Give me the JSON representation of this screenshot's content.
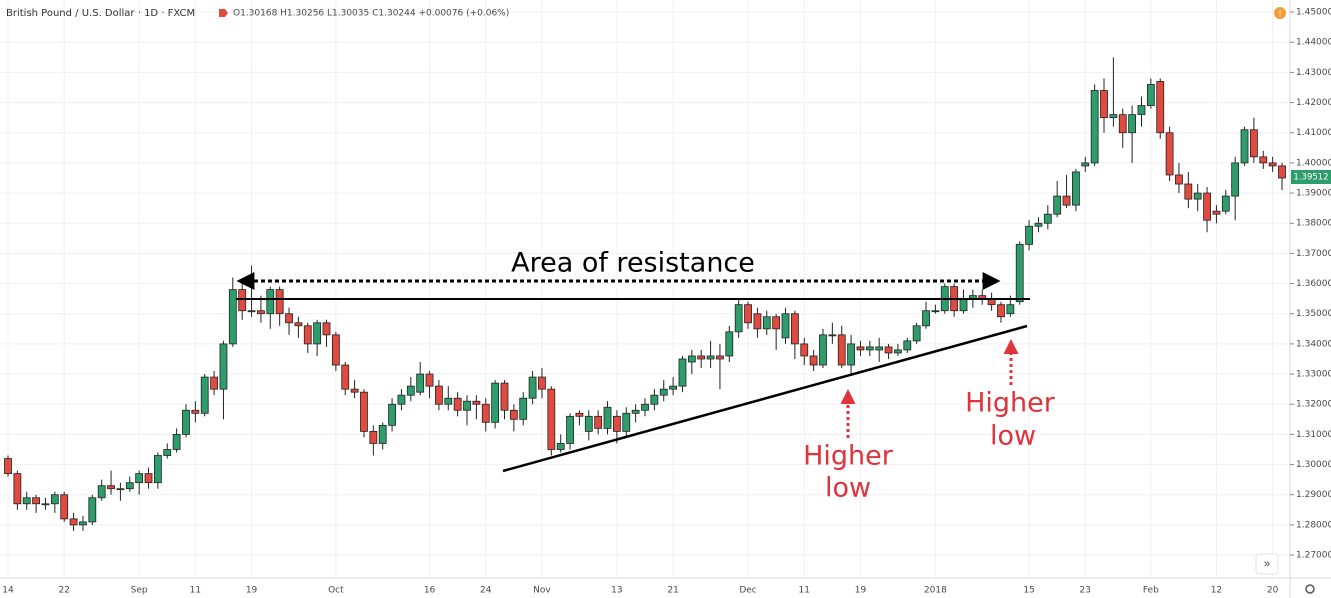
{
  "chart_data": {
    "type": "candlestick",
    "title": "British Pound / U.S. Dollar · 1D · FXCM",
    "legend_values": "O1.30168 H1.30256 L1.30035 C1.30244 +0.00076 (+0.06%)",
    "last_price_label": "1.39512",
    "up_color": "#2e9d6c",
    "down_color": "#e04a3f",
    "grid": true,
    "annotations": {
      "resistance": "Area of resistance",
      "higher_low_1": [
        "Higher",
        "low"
      ],
      "higher_low_2": [
        "Higher",
        "low"
      ]
    },
    "categories": [
      "14",
      null,
      null,
      null,
      null,
      null,
      "22",
      null,
      null,
      null,
      null,
      null,
      null,
      null,
      "Sep",
      null,
      null,
      null,
      null,
      null,
      "11",
      null,
      null,
      null,
      null,
      null,
      "19",
      null,
      null,
      null,
      null,
      null,
      null,
      null,
      null,
      "Oct",
      null,
      null,
      null,
      null,
      null,
      null,
      null,
      null,
      null,
      "16",
      null,
      null,
      null,
      null,
      null,
      "24",
      null,
      null,
      null,
      null,
      null,
      "Nov",
      null,
      null,
      null,
      null,
      null,
      null,
      null,
      "13",
      null,
      null,
      null,
      null,
      null,
      "21",
      null,
      null,
      null,
      null,
      null,
      null,
      null,
      "Dec",
      null,
      null,
      null,
      null,
      null,
      "11",
      null,
      null,
      null,
      null,
      null,
      "19",
      null,
      null,
      null,
      null,
      null,
      null,
      null,
      "2018",
      null,
      null,
      null,
      null,
      null,
      null,
      null,
      null,
      null,
      "15",
      null,
      null,
      null,
      null,
      null,
      "23",
      null,
      null,
      null,
      null,
      null,
      null,
      "Feb",
      null,
      null,
      null,
      null,
      null,
      null,
      "12",
      null,
      null,
      null,
      null,
      null,
      "20",
      null
    ],
    "open": [
      1.302,
      1.297,
      1.287,
      1.289,
      1.287,
      1.287,
      1.29,
      1.282,
      1.28,
      1.281,
      1.289,
      1.293,
      1.292,
      1.292,
      1.294,
      1.297,
      1.294,
      1.303,
      1.305,
      1.31,
      1.318,
      1.317,
      1.329,
      1.325,
      1.34,
      1.358,
      1.351,
      1.351,
      1.35,
      1.358,
      1.35,
      1.347,
      1.346,
      1.34,
      1.347,
      1.343,
      1.333,
      1.325,
      1.324,
      1.311,
      1.307,
      1.313,
      1.32,
      1.323,
      1.324,
      1.33,
      1.326,
      1.32,
      1.322,
      1.318,
      1.321,
      1.32,
      1.314,
      1.327,
      1.318,
      1.315,
      1.322,
      1.329,
      1.325,
      1.305,
      1.307,
      1.317,
      1.311,
      1.316,
      1.312,
      1.316,
      1.311,
      1.317,
      1.318,
      1.32,
      1.323,
      1.325,
      1.326,
      1.334,
      1.336,
      1.335,
      1.336,
      1.336,
      1.344,
      1.353,
      1.35,
      1.345,
      1.349,
      1.342,
      1.35,
      1.34,
      1.336,
      1.333,
      1.343,
      1.343,
      1.333,
      1.339,
      1.338,
      1.338,
      1.339,
      1.337,
      1.338,
      1.341,
      1.346,
      1.351,
      1.351,
      1.359,
      1.351,
      1.355,
      1.356,
      1.355,
      1.353,
      1.35,
      1.354,
      1.373,
      1.379,
      1.38,
      1.383,
      1.389,
      1.386,
      1.399,
      1.4,
      1.424,
      1.415,
      1.416,
      1.41,
      1.416,
      1.419,
      1.427,
      1.41,
      1.396,
      1.393,
      1.388,
      1.39,
      1.384,
      1.384,
      1.389,
      1.4,
      1.411,
      1.402,
      1.4,
      1.399
    ],
    "high": [
      1.303,
      1.298,
      1.291,
      1.29,
      1.289,
      1.291,
      1.291,
      1.284,
      1.283,
      1.29,
      1.295,
      1.298,
      1.294,
      1.296,
      1.298,
      1.299,
      1.304,
      1.307,
      1.312,
      1.32,
      1.321,
      1.33,
      1.331,
      1.341,
      1.362,
      1.36,
      1.366,
      1.356,
      1.359,
      1.359,
      1.352,
      1.349,
      1.347,
      1.348,
      1.348,
      1.344,
      1.334,
      1.328,
      1.325,
      1.313,
      1.314,
      1.322,
      1.325,
      1.329,
      1.334,
      1.331,
      1.328,
      1.326,
      1.324,
      1.323,
      1.323,
      1.322,
      1.328,
      1.328,
      1.32,
      1.324,
      1.331,
      1.332,
      1.326,
      1.31,
      1.317,
      1.318,
      1.318,
      1.318,
      1.321,
      1.318,
      1.319,
      1.32,
      1.322,
      1.325,
      1.328,
      1.329,
      1.336,
      1.338,
      1.338,
      1.341,
      1.34,
      1.346,
      1.355,
      1.354,
      1.352,
      1.351,
      1.35,
      1.352,
      1.351,
      1.342,
      1.338,
      1.345,
      1.347,
      1.346,
      1.343,
      1.341,
      1.341,
      1.342,
      1.34,
      1.34,
      1.342,
      1.347,
      1.354,
      1.353,
      1.36,
      1.36,
      1.358,
      1.358,
      1.358,
      1.357,
      1.354,
      1.356,
      1.374,
      1.381,
      1.382,
      1.386,
      1.394,
      1.396,
      1.398,
      1.402,
      1.426,
      1.428,
      1.435,
      1.418,
      1.419,
      1.422,
      1.428,
      1.428,
      1.412,
      1.4,
      1.397,
      1.393,
      1.392,
      1.386,
      1.391,
      1.402,
      1.412,
      1.415,
      1.404,
      1.402,
      1.4
    ],
    "low": [
      1.296,
      1.285,
      1.285,
      1.284,
      1.285,
      1.284,
      1.281,
      1.278,
      1.278,
      1.28,
      1.288,
      1.29,
      1.288,
      1.291,
      1.29,
      1.292,
      1.292,
      1.302,
      1.304,
      1.309,
      1.314,
      1.316,
      1.323,
      1.315,
      1.339,
      1.348,
      1.349,
      1.347,
      1.345,
      1.346,
      1.343,
      1.342,
      1.337,
      1.336,
      1.339,
      1.331,
      1.323,
      1.322,
      1.309,
      1.303,
      1.305,
      1.311,
      1.318,
      1.321,
      1.323,
      1.322,
      1.318,
      1.318,
      1.316,
      1.313,
      1.315,
      1.311,
      1.312,
      1.315,
      1.311,
      1.313,
      1.32,
      1.322,
      1.303,
      1.304,
      1.305,
      1.313,
      1.308,
      1.31,
      1.31,
      1.307,
      1.309,
      1.314,
      1.316,
      1.318,
      1.321,
      1.323,
      1.324,
      1.33,
      1.332,
      1.332,
      1.325,
      1.334,
      1.342,
      1.345,
      1.342,
      1.343,
      1.338,
      1.34,
      1.335,
      1.333,
      1.331,
      1.332,
      1.34,
      1.332,
      1.33,
      1.336,
      1.336,
      1.334,
      1.335,
      1.336,
      1.337,
      1.34,
      1.345,
      1.35,
      1.35,
      1.349,
      1.35,
      1.352,
      1.353,
      1.351,
      1.347,
      1.349,
      1.353,
      1.371,
      1.377,
      1.378,
      1.382,
      1.385,
      1.384,
      1.397,
      1.399,
      1.41,
      1.412,
      1.405,
      1.4,
      1.412,
      1.418,
      1.408,
      1.394,
      1.39,
      1.385,
      1.384,
      1.377,
      1.38,
      1.383,
      1.381,
      1.399,
      1.4,
      1.398,
      1.397,
      1.391
    ],
    "close": [
      1.297,
      1.287,
      1.289,
      1.287,
      1.287,
      1.29,
      1.282,
      1.28,
      1.281,
      1.289,
      1.293,
      1.292,
      1.292,
      1.294,
      1.297,
      1.294,
      1.303,
      1.305,
      1.31,
      1.318,
      1.317,
      1.329,
      1.325,
      1.34,
      1.358,
      1.351,
      1.351,
      1.35,
      1.358,
      1.35,
      1.347,
      1.346,
      1.34,
      1.347,
      1.343,
      1.333,
      1.325,
      1.324,
      1.311,
      1.307,
      1.313,
      1.32,
      1.323,
      1.326,
      1.33,
      1.326,
      1.32,
      1.322,
      1.318,
      1.321,
      1.32,
      1.314,
      1.327,
      1.318,
      1.315,
      1.322,
      1.329,
      1.325,
      1.305,
      1.307,
      1.316,
      1.316,
      1.316,
      1.312,
      1.319,
      1.311,
      1.317,
      1.318,
      1.32,
      1.323,
      1.325,
      1.326,
      1.335,
      1.336,
      1.335,
      1.336,
      1.335,
      1.344,
      1.353,
      1.347,
      1.345,
      1.349,
      1.345,
      1.35,
      1.34,
      1.336,
      1.333,
      1.343,
      1.343,
      1.333,
      1.34,
      1.338,
      1.339,
      1.339,
      1.337,
      1.338,
      1.341,
      1.346,
      1.351,
      1.351,
      1.359,
      1.351,
      1.355,
      1.356,
      1.355,
      1.353,
      1.349,
      1.353,
      1.373,
      1.379,
      1.38,
      1.383,
      1.389,
      1.386,
      1.397,
      1.4,
      1.424,
      1.415,
      1.416,
      1.41,
      1.416,
      1.419,
      1.426,
      1.41,
      1.396,
      1.393,
      1.388,
      1.39,
      1.381,
      1.383,
      1.389,
      1.4,
      1.411,
      1.402,
      1.4,
      1.399,
      1.395
    ],
    "ylim": [
      1.2624,
      1.454
    ],
    "yticks": [
      {
        "value": 1.27,
        "label": "1.27000"
      },
      {
        "value": 1.28,
        "label": "1.28000"
      },
      {
        "value": 1.29,
        "label": "1.29000"
      },
      {
        "value": 1.3,
        "label": "1.30000"
      },
      {
        "value": 1.31,
        "label": "1.31000"
      },
      {
        "value": 1.32,
        "label": "1.32000"
      },
      {
        "value": 1.33,
        "label": "1.33000"
      },
      {
        "value": 1.34,
        "label": "1.34000"
      },
      {
        "value": 1.35,
        "label": "1.35000"
      },
      {
        "value": 1.36,
        "label": "1.36000"
      },
      {
        "value": 1.37,
        "label": "1.37000"
      },
      {
        "value": 1.38,
        "label": "1.38000"
      },
      {
        "value": 1.39,
        "label": "1.39000"
      },
      {
        "value": 1.4,
        "label": "1.40000"
      },
      {
        "value": 1.41,
        "label": "1.41000"
      },
      {
        "value": 1.42,
        "label": "1.42000"
      },
      {
        "value": 1.43,
        "label": "1.43000"
      },
      {
        "value": 1.44,
        "label": "1.44000"
      },
      {
        "value": 1.45,
        "label": "1.45000"
      }
    ]
  }
}
